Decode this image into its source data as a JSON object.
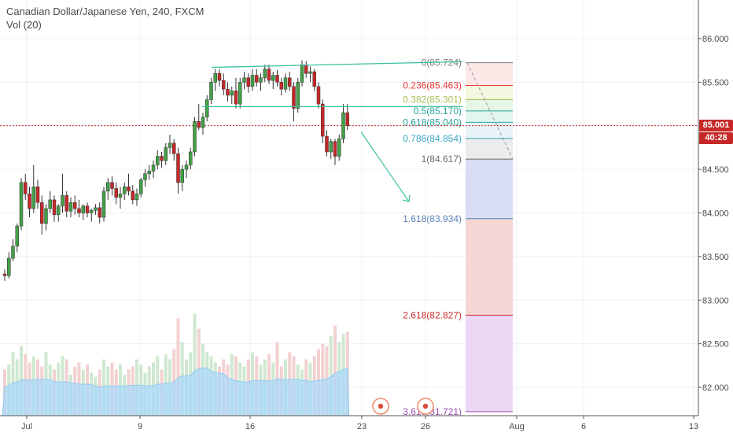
{
  "legend": {
    "symbol_line": "Canadian Dollar/Japanese Yen, 240, FXCM",
    "volume_line": "Vol (20)"
  },
  "price_tag": {
    "value": "85.001",
    "color": "#c62828"
  },
  "countdown_tag": {
    "value": "40:28",
    "color": "#c62828"
  },
  "colors": {
    "up": "#43a047",
    "down": "#c62828",
    "wick": "#333333",
    "channel": "#3bbfa3",
    "grid": "#eef0f3",
    "vol_ma": "#90cdf4"
  },
  "chart_data": {
    "type": "candlestick",
    "ylim": [
      81.65,
      86.15
    ],
    "y_ticks": [
      "86.000",
      "85.500",
      "85.000",
      "84.500",
      "84.000",
      "83.500",
      "83.000",
      "82.500",
      "82.000"
    ],
    "y_tick_values": [
      86.0,
      85.5,
      85.0,
      84.5,
      84.0,
      83.5,
      83.0,
      82.5,
      82.0
    ],
    "x_ticks": [
      "Jul",
      "9",
      "16",
      "23",
      "26",
      "Aug",
      "6",
      "13"
    ],
    "current_price": 85.001,
    "fib_levels": [
      {
        "label": "0(85.724)",
        "value": 85.724,
        "color": "#7e7e7e",
        "fill": "#ffffff"
      },
      {
        "label": "0.236(85.463)",
        "value": 85.463,
        "color": "#e53935",
        "fill": "#fde8e8"
      },
      {
        "label": "0.382(85.301)",
        "value": 85.301,
        "color": "#a8c256",
        "fill": "#f3f7df"
      },
      {
        "label": "0.5(85.170)",
        "value": 85.17,
        "color": "#26a69a",
        "fill": "#e5f5e6"
      },
      {
        "label": "0.618(85.040)",
        "value": 85.04,
        "color": "#26a69a",
        "fill": "#e1f4ef"
      },
      {
        "label": "0.786(84.854)",
        "value": 84.854,
        "color": "#3aa6c4",
        "fill": "#e7f3f7"
      },
      {
        "label": "1(84.617)",
        "value": 84.617,
        "color": "#6b6b6b",
        "fill": "#ececec"
      },
      {
        "label": "1.618(83.934)",
        "value": 83.934,
        "color": "#5a83b8",
        "fill": "#d8dcf5"
      },
      {
        "label": "2.618(82.827)",
        "value": 82.827,
        "color": "#d32f2f",
        "fill": "#f6d5d5"
      },
      {
        "label": "3.618(81.721)",
        "value": 81.721,
        "color": "#9c4fb0",
        "fill": "#ecd7f5"
      }
    ],
    "candles": [
      [
        83.3,
        83.35,
        83.22,
        83.28
      ],
      [
        83.28,
        83.55,
        83.25,
        83.48
      ],
      [
        83.48,
        83.7,
        83.45,
        83.62
      ],
      [
        83.62,
        83.88,
        83.55,
        83.85
      ],
      [
        83.85,
        84.4,
        83.8,
        84.35
      ],
      [
        84.35,
        84.45,
        84.15,
        84.22
      ],
      [
        84.22,
        84.3,
        83.95,
        84.05
      ],
      [
        84.05,
        84.55,
        84.0,
        84.3
      ],
      [
        84.3,
        84.38,
        84.05,
        84.12
      ],
      [
        84.12,
        84.2,
        83.75,
        83.88
      ],
      [
        83.88,
        84.1,
        83.8,
        84.05
      ],
      [
        84.05,
        84.25,
        84.0,
        84.15
      ],
      [
        84.15,
        84.2,
        83.9,
        83.98
      ],
      [
        83.98,
        84.1,
        83.9,
        84.08
      ],
      [
        84.08,
        84.45,
        84.0,
        84.2
      ],
      [
        84.2,
        84.25,
        83.95,
        84.02
      ],
      [
        84.02,
        84.18,
        83.95,
        84.12
      ],
      [
        84.12,
        84.2,
        83.98,
        84.05
      ],
      [
        84.05,
        84.15,
        83.95,
        84.0
      ],
      [
        84.0,
        84.1,
        83.92,
        84.08
      ],
      [
        84.08,
        84.12,
        83.95,
        84.0
      ],
      [
        84.0,
        84.05,
        83.9,
        84.03
      ],
      [
        84.03,
        84.1,
        83.98,
        84.06
      ],
      [
        84.06,
        84.12,
        83.88,
        83.95
      ],
      [
        83.95,
        84.3,
        83.9,
        84.25
      ],
      [
        84.25,
        84.4,
        84.15,
        84.35
      ],
      [
        84.35,
        84.42,
        84.2,
        84.28
      ],
      [
        84.28,
        84.35,
        84.1,
        84.18
      ],
      [
        84.18,
        84.3,
        84.05,
        84.22
      ],
      [
        84.22,
        84.35,
        84.15,
        84.3
      ],
      [
        84.3,
        84.45,
        84.2,
        84.25
      ],
      [
        84.25,
        84.32,
        84.1,
        84.15
      ],
      [
        84.15,
        84.28,
        84.08,
        84.22
      ],
      [
        84.22,
        84.4,
        84.18,
        84.38
      ],
      [
        84.38,
        84.5,
        84.3,
        84.45
      ],
      [
        84.45,
        84.55,
        84.38,
        84.48
      ],
      [
        84.48,
        84.6,
        84.4,
        84.55
      ],
      [
        84.55,
        84.72,
        84.5,
        84.65
      ],
      [
        84.65,
        84.7,
        84.52,
        84.6
      ],
      [
        84.6,
        84.8,
        84.55,
        84.75
      ],
      [
        84.75,
        84.9,
        84.68,
        84.8
      ],
      [
        84.8,
        84.85,
        84.6,
        84.68
      ],
      [
        84.68,
        84.75,
        84.22,
        84.35
      ],
      [
        84.35,
        84.55,
        84.25,
        84.5
      ],
      [
        84.5,
        84.6,
        84.4,
        84.55
      ],
      [
        84.55,
        84.75,
        84.5,
        84.7
      ],
      [
        84.7,
        85.1,
        84.65,
        85.05
      ],
      [
        85.05,
        85.25,
        84.95,
        84.98
      ],
      [
        84.98,
        85.15,
        84.9,
        85.1
      ],
      [
        85.1,
        85.35,
        85.05,
        85.3
      ],
      [
        85.3,
        85.55,
        85.25,
        85.5
      ],
      [
        85.5,
        85.65,
        85.4,
        85.6
      ],
      [
        85.6,
        85.65,
        85.45,
        85.52
      ],
      [
        85.52,
        85.6,
        85.35,
        85.42
      ],
      [
        85.42,
        85.5,
        85.28,
        85.35
      ],
      [
        85.35,
        85.45,
        85.25,
        85.4
      ],
      [
        85.4,
        85.55,
        85.2,
        85.25
      ],
      [
        85.25,
        85.55,
        85.2,
        85.5
      ],
      [
        85.5,
        85.62,
        85.42,
        85.55
      ],
      [
        85.55,
        85.6,
        85.38,
        85.45
      ],
      [
        85.45,
        85.65,
        85.4,
        85.58
      ],
      [
        85.58,
        85.65,
        85.45,
        85.5
      ],
      [
        85.5,
        85.6,
        85.4,
        85.55
      ],
      [
        85.55,
        85.7,
        85.5,
        85.65
      ],
      [
        85.65,
        85.7,
        85.48,
        85.52
      ],
      [
        85.52,
        85.62,
        85.42,
        85.58
      ],
      [
        85.58,
        85.64,
        85.45,
        85.5
      ],
      [
        85.5,
        85.55,
        85.35,
        85.42
      ],
      [
        85.42,
        85.6,
        85.38,
        85.55
      ],
      [
        85.55,
        85.62,
        85.4,
        85.45
      ],
      [
        85.45,
        85.5,
        85.05,
        85.2
      ],
      [
        85.2,
        85.55,
        85.15,
        85.5
      ],
      [
        85.5,
        85.75,
        85.45,
        85.7
      ],
      [
        85.7,
        85.74,
        85.55,
        85.6
      ],
      [
        85.6,
        85.68,
        85.5,
        85.62
      ],
      [
        85.62,
        85.65,
        85.4,
        85.45
      ],
      [
        85.45,
        85.5,
        85.2,
        85.25
      ],
      [
        85.25,
        85.3,
        84.8,
        84.88
      ],
      [
        84.88,
        84.95,
        84.65,
        84.7
      ],
      [
        84.7,
        84.85,
        84.62,
        84.82
      ],
      [
        84.82,
        84.85,
        84.55,
        84.65
      ],
      [
        84.65,
        84.9,
        84.6,
        84.85
      ],
      [
        84.85,
        85.25,
        84.8,
        85.15
      ],
      [
        85.15,
        85.25,
        84.95,
        85.0
      ]
    ],
    "volumes": [
      0.45,
      0.5,
      0.62,
      0.55,
      0.68,
      0.6,
      0.52,
      0.58,
      0.55,
      0.48,
      0.62,
      0.5,
      0.45,
      0.52,
      0.58,
      0.55,
      0.4,
      0.48,
      0.52,
      0.45,
      0.5,
      0.42,
      0.38,
      0.45,
      0.55,
      0.48,
      0.52,
      0.45,
      0.5,
      0.4,
      0.45,
      0.48,
      0.55,
      0.5,
      0.42,
      0.48,
      0.52,
      0.58,
      0.45,
      0.6,
      0.55,
      0.65,
      0.95,
      0.72,
      0.55,
      0.62,
      1.0,
      0.85,
      0.7,
      0.62,
      0.58,
      0.52,
      0.48,
      0.55,
      0.5,
      0.6,
      0.58,
      0.52,
      0.48,
      0.55,
      0.62,
      0.58,
      0.5,
      0.55,
      0.6,
      0.52,
      0.72,
      0.48,
      0.55,
      0.62,
      0.58,
      0.5,
      0.45,
      0.55,
      0.52,
      0.58,
      0.65,
      0.7,
      0.68,
      0.78,
      0.88,
      0.72,
      0.8,
      0.82
    ]
  }
}
